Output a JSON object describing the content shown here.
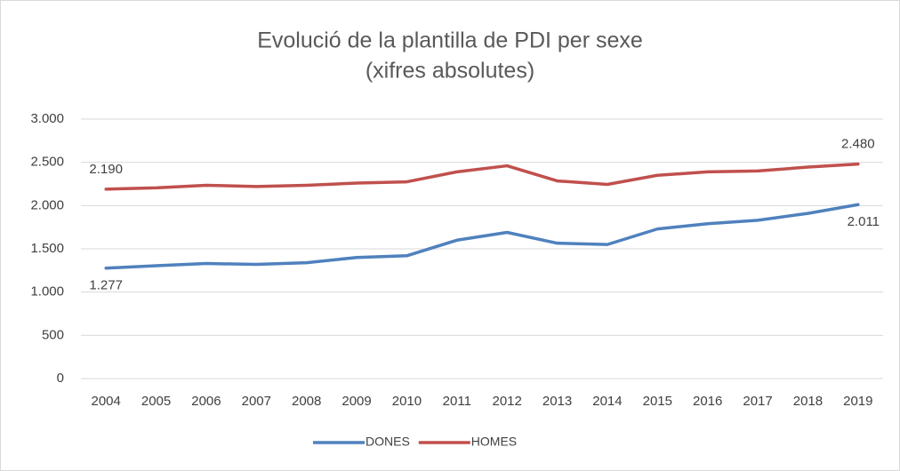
{
  "chart_data": {
    "type": "line",
    "title": [
      "Evolució de la plantilla de PDI per sexe",
      "(xifres absolutes)"
    ],
    "categories": [
      "2004",
      "2005",
      "2006",
      "2007",
      "2008",
      "2009",
      "2010",
      "2011",
      "2012",
      "2013",
      "2014",
      "2015",
      "2016",
      "2017",
      "2018",
      "2019"
    ],
    "series": [
      {
        "name": "DONES",
        "color": "#4f81bd",
        "values": [
          1277,
          1305,
          1330,
          1320,
          1340,
          1400,
          1420,
          1600,
          1690,
          1565,
          1550,
          1730,
          1790,
          1830,
          1910,
          2011
        ],
        "value_labels": [
          "1.277",
          null,
          null,
          null,
          null,
          null,
          null,
          null,
          null,
          null,
          null,
          null,
          null,
          null,
          null,
          "2.011"
        ]
      },
      {
        "name": "HOMES",
        "color": "#c0504d",
        "values": [
          2190,
          2205,
          2235,
          2220,
          2235,
          2260,
          2275,
          2390,
          2460,
          2285,
          2245,
          2350,
          2390,
          2400,
          2445,
          2480
        ],
        "value_labels": [
          "2.190",
          null,
          null,
          null,
          null,
          null,
          null,
          null,
          null,
          null,
          null,
          null,
          null,
          null,
          null,
          "2.480"
        ]
      }
    ],
    "ylim": [
      0,
      3000
    ],
    "yticks": [
      {
        "value": 0,
        "label": "0"
      },
      {
        "value": 500,
        "label": "500"
      },
      {
        "value": 1000,
        "label": "1.000"
      },
      {
        "value": 1500,
        "label": "1.500"
      },
      {
        "value": 2000,
        "label": "2.000"
      },
      {
        "value": 2500,
        "label": "2.500"
      },
      {
        "value": 3000,
        "label": "3.000"
      }
    ],
    "grid": true,
    "legend": "bottom"
  }
}
